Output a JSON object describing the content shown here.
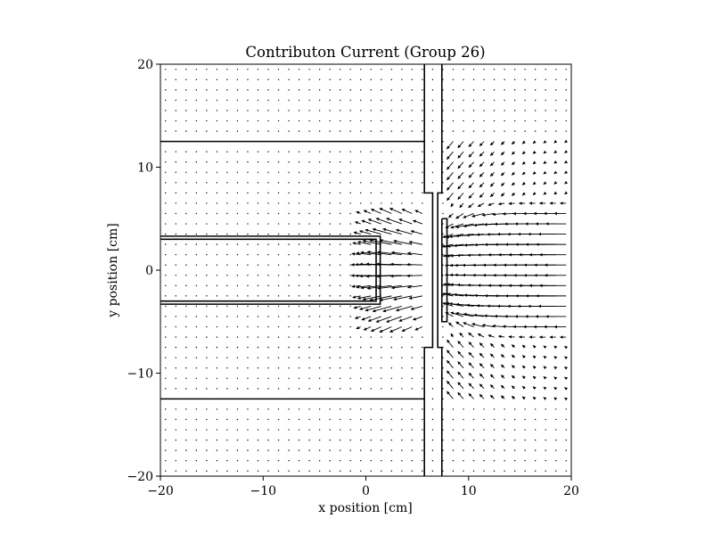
{
  "chart_data": {
    "type": "quiver",
    "title": "Contributon Current (Group 26)",
    "xlabel": "x position [cm]",
    "ylabel": "y position [cm]",
    "xlim": [
      -20,
      20
    ],
    "ylim": [
      -20,
      20
    ],
    "xticks": [
      -20,
      -10,
      0,
      10,
      20
    ],
    "yticks": [
      -20,
      -10,
      0,
      10,
      20
    ],
    "x_tick_labels": [
      "−20",
      "−10",
      "0",
      "10",
      "20"
    ],
    "y_tick_labels": [
      "−20",
      "−10",
      "0",
      "10",
      "20"
    ],
    "grid": false,
    "legend": "none",
    "colors": {
      "arrows": "#000000",
      "geometry": "#000000",
      "background": "#ffffff"
    },
    "grid_spacing_cm": 1.0,
    "geometry": [
      [
        [
          -20,
          12.5
        ],
        [
          5.7,
          12.5
        ]
      ],
      [
        [
          -20,
          -12.5
        ],
        [
          5.7,
          -12.5
        ]
      ],
      [
        [
          -20,
          3.3
        ],
        [
          1.4,
          3.3
        ],
        [
          1.4,
          -3.3
        ],
        [
          -20,
          -3.3
        ]
      ],
      [
        [
          -20,
          3.0
        ],
        [
          1.0,
          3.0
        ],
        [
          1.0,
          -3.0
        ],
        [
          -20,
          -3.0
        ]
      ],
      [
        [
          5.7,
          20
        ],
        [
          5.7,
          7.5
        ],
        [
          6.5,
          7.5
        ],
        [
          6.5,
          -7.5
        ],
        [
          5.7,
          -7.5
        ],
        [
          5.7,
          -20
        ]
      ],
      [
        [
          7.4,
          20
        ],
        [
          7.4,
          7.5
        ],
        [
          7.0,
          7.5
        ],
        [
          7.0,
          -7.5
        ],
        [
          7.4,
          -7.5
        ],
        [
          7.4,
          -20
        ]
      ],
      [
        [
          7.4,
          5.0
        ],
        [
          7.9,
          5.0
        ],
        [
          7.9,
          -5.0
        ],
        [
          7.4,
          -5.0
        ],
        [
          7.4,
          5.0
        ]
      ]
    ],
    "field_description": "Arrows point toward -x with magnitude increasing near the beam-window region x between 2 and 20 cm, y between -12 and 12 cm; strongest along horizontal bands near y = +3 and y = -3; near-zero elsewhere (dots)."
  }
}
